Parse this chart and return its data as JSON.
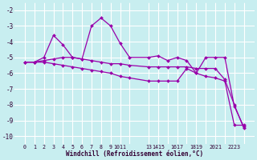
{
  "x": [
    0,
    1,
    2,
    3,
    4,
    5,
    6,
    7,
    8,
    9,
    10,
    11,
    13,
    14,
    15,
    16,
    17,
    18,
    19,
    20,
    21,
    22,
    23
  ],
  "line1": [
    -5.3,
    -5.3,
    -5.0,
    -3.6,
    -4.2,
    -5.0,
    -5.1,
    -3.0,
    -2.5,
    -3.0,
    -4.1,
    -5.0,
    -5.0,
    -4.9,
    -5.2,
    -5.0,
    -5.2,
    -6.0,
    -5.0,
    -5.0,
    -5.0,
    -8.1,
    -9.4
  ],
  "line2": [
    -5.3,
    -5.3,
    -5.2,
    -5.1,
    -5.0,
    -5.0,
    -5.1,
    -5.2,
    -5.3,
    -5.4,
    -5.4,
    -5.5,
    -5.6,
    -5.6,
    -5.6,
    -5.6,
    -5.6,
    -5.7,
    -5.7,
    -5.7,
    -6.4,
    -8.0,
    -9.5
  ],
  "line3": [
    -5.3,
    -5.3,
    -5.3,
    -5.4,
    -5.5,
    -5.6,
    -5.7,
    -5.8,
    -5.9,
    -6.0,
    -6.2,
    -6.3,
    -6.5,
    -6.5,
    -6.5,
    -6.5,
    -5.7,
    -6.0,
    -6.2,
    -6.3,
    -6.5,
    -9.3,
    -9.3
  ],
  "xlabel": "Windchill (Refroidissement éolien,°C)",
  "ylim": [
    -10.5,
    -1.5
  ],
  "yticks": [
    -10,
    -9,
    -8,
    -7,
    -6,
    -5,
    -4,
    -3,
    -2
  ],
  "xtick_labels": [
    "0",
    "1",
    "2",
    "3",
    "4",
    "5",
    "6",
    "7",
    "8",
    "9",
    "1011",
    "",
    "13",
    "1415",
    "",
    "1617",
    "",
    "1819",
    "",
    "2021",
    "",
    "2223",
    ""
  ],
  "xtick_pos": [
    0,
    1,
    2,
    3,
    4,
    5,
    6,
    7,
    8,
    9,
    10,
    11,
    13,
    14,
    15,
    16,
    17,
    18,
    19,
    20,
    21,
    22,
    23
  ],
  "color": "#9900aa",
  "bg_color": "#c8eef0",
  "grid_color": "#ffffff"
}
